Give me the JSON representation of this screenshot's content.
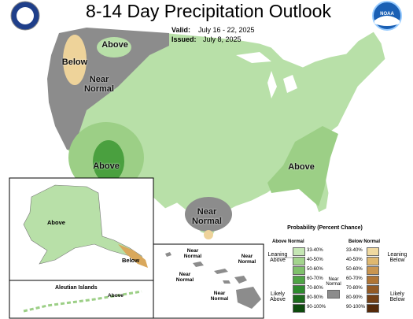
{
  "header": {
    "title": "8-14 Day Precipitation Outlook",
    "valid_label": "Valid:",
    "valid": "July 16 - 22, 2025",
    "issued_label": "Issued:",
    "issued": "July 8, 2025",
    "logo": "NOAA"
  },
  "map": {
    "labels": [
      "Above",
      "Below",
      "Near Normal",
      "Above",
      "Near Normal",
      "Above"
    ]
  },
  "alaska": {
    "labels": [
      "Above",
      "Below"
    ],
    "aleutian_title": "Aleutian Islands",
    "aleutian_label": "Above"
  },
  "hawaii": {
    "labels": [
      "Near Normal",
      "Near Normal",
      "Near Normal",
      "Near Normal"
    ]
  },
  "legend": {
    "title": "Probability (Percent Chance)",
    "above_title": "Above Normal",
    "below_title": "Below Normal",
    "near_normal": "Near Normal",
    "near_normal_color": "#8c8c8c",
    "leaning_above": "Leaning Above",
    "likely_above": "Likely Above",
    "leaning_below": "Leaning Below",
    "likely_below": "Likely Below",
    "above": [
      {
        "label": "33-40%",
        "color": "#c5e6b4"
      },
      {
        "label": "40-50%",
        "color": "#a3d48d"
      },
      {
        "label": "50-60%",
        "color": "#7fc06b"
      },
      {
        "label": "60-70%",
        "color": "#4fa445"
      },
      {
        "label": "70-80%",
        "color": "#2e8b2e"
      },
      {
        "label": "80-90%",
        "color": "#1c6b1c"
      },
      {
        "label": "90-100%",
        "color": "#0d4a0d"
      }
    ],
    "below": [
      {
        "label": "33-40%",
        "color": "#f0d9a0"
      },
      {
        "label": "40-50%",
        "color": "#dfb870"
      },
      {
        "label": "50-60%",
        "color": "#c99550"
      },
      {
        "label": "60-70%",
        "color": "#b07535"
      },
      {
        "label": "70-80%",
        "color": "#935a25"
      },
      {
        "label": "80-90%",
        "color": "#744015"
      },
      {
        "label": "90-100%",
        "color": "#552a0a"
      }
    ]
  }
}
